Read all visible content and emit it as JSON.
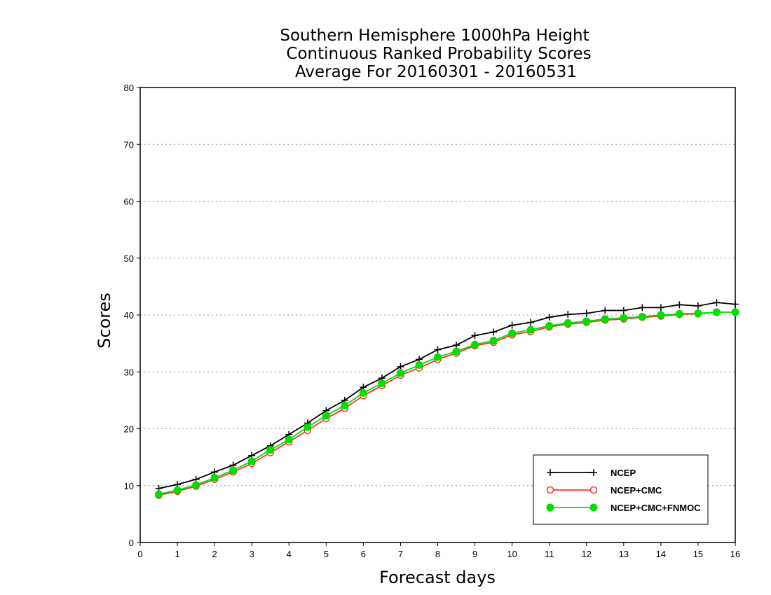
{
  "chart_data": {
    "type": "line",
    "title": "Southern Hemisphere 1000hPa Height",
    "subtitle": "Continuous Ranked Probability Scores",
    "subtitle2": "Average For 20160301 - 20160531",
    "xlabel": "Forecast days",
    "ylabel": "Scores",
    "xlim": [
      0,
      16
    ],
    "ylim": [
      0,
      80
    ],
    "xticks": [
      "0",
      "1",
      "2",
      "3",
      "4",
      "5",
      "6",
      "7",
      "8",
      "9",
      "10",
      "11",
      "12",
      "13",
      "14",
      "15",
      "16"
    ],
    "yticks": [
      "0",
      "10",
      "20",
      "30",
      "40",
      "50",
      "60",
      "70",
      "80"
    ],
    "grid": "horizontal dotted",
    "legend_position": "bottom-right",
    "x": [
      0.5,
      1,
      1.5,
      2,
      2.5,
      3,
      3.5,
      4,
      4.5,
      5,
      5.5,
      6,
      6.5,
      7,
      7.5,
      8,
      8.5,
      9,
      9.5,
      10,
      10.5,
      11,
      11.5,
      12,
      12.5,
      13,
      13.5,
      14,
      14.5,
      15,
      15.5,
      16
    ],
    "series": [
      {
        "name": "NCEP",
        "color": "#000000",
        "marker": "plus",
        "values": [
          9.5,
          10.2,
          11.1,
          12.4,
          13.6,
          15.3,
          17.0,
          19.0,
          21.0,
          23.2,
          25.0,
          27.3,
          28.9,
          30.9,
          32.2,
          33.9,
          34.7,
          36.4,
          37.0,
          38.2,
          38.7,
          39.6,
          40.1,
          40.3,
          40.8,
          40.8,
          41.3,
          41.3,
          41.8,
          41.6,
          42.2,
          41.9
        ]
      },
      {
        "name": "NCEP+CMC",
        "color": "#ff3030",
        "marker": "open-circle",
        "values": [
          8.3,
          9.0,
          9.9,
          11.1,
          12.4,
          13.9,
          15.8,
          17.7,
          19.7,
          21.8,
          23.6,
          25.8,
          27.6,
          29.4,
          30.7,
          32.2,
          33.3,
          34.6,
          35.2,
          36.5,
          37.1,
          37.9,
          38.4,
          38.7,
          39.1,
          39.3,
          39.6,
          39.8,
          40.1,
          40.2,
          40.5,
          40.5
        ]
      },
      {
        "name": "NCEP+CMC+FNMOC",
        "color": "#00e000",
        "marker": "filled-circle",
        "values": [
          8.5,
          9.2,
          10.1,
          11.4,
          12.7,
          14.3,
          16.3,
          18.1,
          20.3,
          22.3,
          24.1,
          26.3,
          28.0,
          29.8,
          31.2,
          32.6,
          33.6,
          34.8,
          35.5,
          36.8,
          37.4,
          38.1,
          38.6,
          38.9,
          39.3,
          39.5,
          39.7,
          40.0,
          40.2,
          40.3,
          40.5,
          40.5
        ]
      }
    ]
  }
}
